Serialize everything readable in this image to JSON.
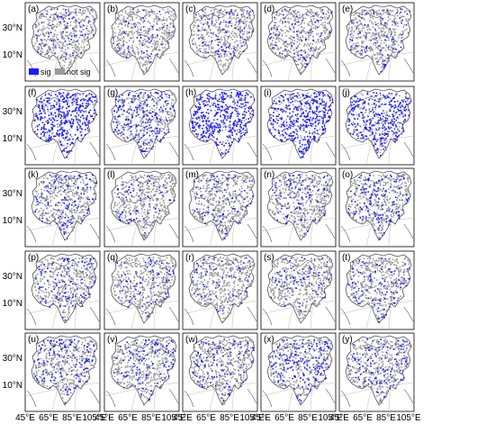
{
  "legend": {
    "sig_label": "sig",
    "not_sig_label": "not sig",
    "sig_color": "#1a1aff",
    "not_sig_color": "#9a9a9a"
  },
  "axes": {
    "y_ticks": [
      "30°N",
      "10°N"
    ],
    "x_ticks": [
      "45°E",
      "65°E",
      "85°E",
      "105°E"
    ]
  },
  "panels": [
    {
      "label": "(a)",
      "sig_fraction": 0.18
    },
    {
      "label": "(b)",
      "sig_fraction": 0.15
    },
    {
      "label": "(c)",
      "sig_fraction": 0.2
    },
    {
      "label": "(d)",
      "sig_fraction": 0.17
    },
    {
      "label": "(e)",
      "sig_fraction": 0.22
    },
    {
      "label": "(f)",
      "sig_fraction": 0.78
    },
    {
      "label": "(g)",
      "sig_fraction": 0.45
    },
    {
      "label": "(h)",
      "sig_fraction": 0.8
    },
    {
      "label": "(i)",
      "sig_fraction": 0.7
    },
    {
      "label": "(j)",
      "sig_fraction": 0.65
    },
    {
      "label": "(k)",
      "sig_fraction": 0.28
    },
    {
      "label": "(l)",
      "sig_fraction": 0.2
    },
    {
      "label": "(m)",
      "sig_fraction": 0.22
    },
    {
      "label": "(n)",
      "sig_fraction": 0.2
    },
    {
      "label": "(o)",
      "sig_fraction": 0.3
    },
    {
      "label": "(p)",
      "sig_fraction": 0.25
    },
    {
      "label": "(q)",
      "sig_fraction": 0.18
    },
    {
      "label": "(r)",
      "sig_fraction": 0.15
    },
    {
      "label": "(s)",
      "sig_fraction": 0.15
    },
    {
      "label": "(t)",
      "sig_fraction": 0.2
    },
    {
      "label": "(u)",
      "sig_fraction": 0.3
    },
    {
      "label": "(v)",
      "sig_fraction": 0.22
    },
    {
      "label": "(w)",
      "sig_fraction": 0.25
    },
    {
      "label": "(x)",
      "sig_fraction": 0.35
    },
    {
      "label": "(y)",
      "sig_fraction": 0.28
    }
  ]
}
